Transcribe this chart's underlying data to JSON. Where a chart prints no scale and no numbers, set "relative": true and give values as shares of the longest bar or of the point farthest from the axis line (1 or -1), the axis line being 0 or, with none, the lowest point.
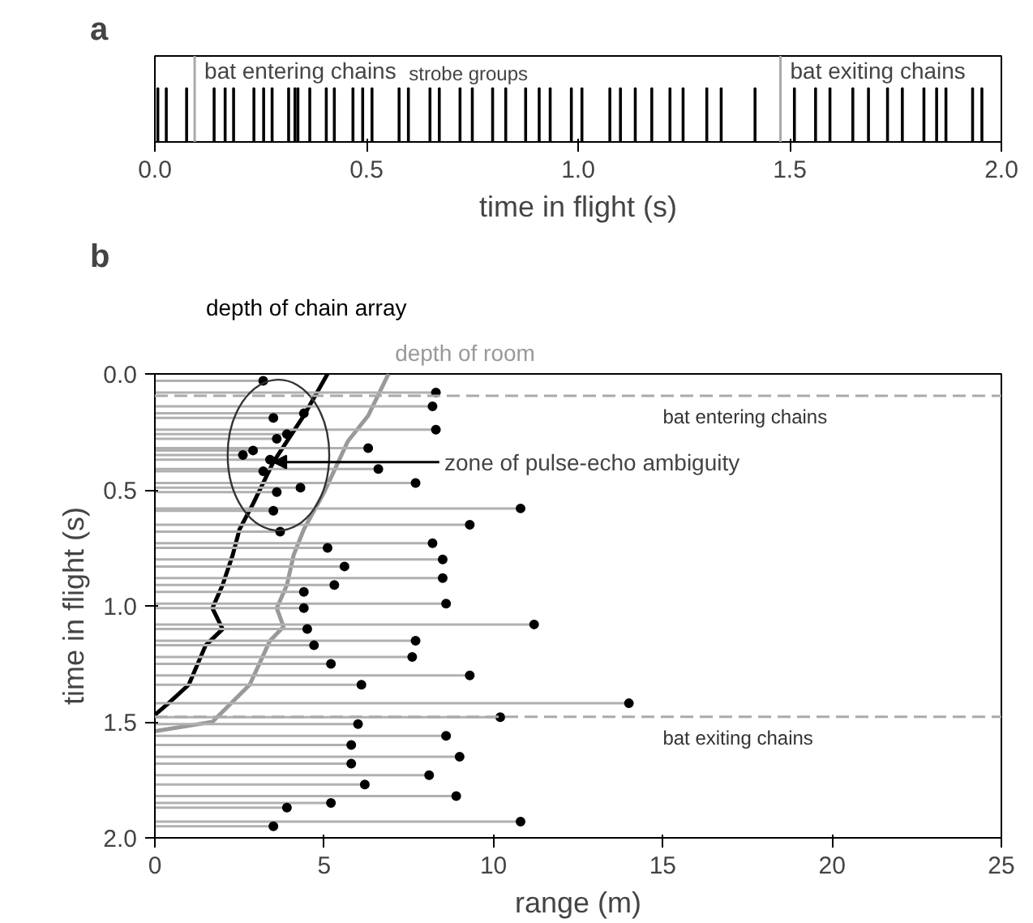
{
  "chart_data": [
    {
      "type": "bar",
      "title": "a",
      "xlabel": "time in flight (s)",
      "relative": true,
      "color": "#000000",
      "tick_labels": "x",
      "grid": false,
      "xlim": [
        0.0,
        2.0
      ],
      "xticks": [
        {
          "value": 0.0,
          "label": "0.0"
        },
        {
          "value": 0.5,
          "label": "0.5"
        },
        {
          "value": 1.0,
          "label": "1.0"
        },
        {
          "value": 1.5,
          "label": "1.5"
        },
        {
          "value": 2.0,
          "label": "2.0"
        }
      ],
      "x": [
        0.007,
        0.027,
        0.075,
        0.14,
        0.166,
        0.186,
        0.234,
        0.257,
        0.277,
        0.316,
        0.331,
        0.338,
        0.366,
        0.405,
        0.424,
        0.468,
        0.491,
        0.513,
        0.577,
        0.599,
        0.65,
        0.672,
        0.721,
        0.75,
        0.798,
        0.829,
        0.876,
        0.908,
        0.934,
        0.984,
        1.009,
        1.075,
        1.1,
        1.135,
        1.174,
        1.217,
        1.248,
        1.304,
        1.338,
        1.418,
        1.511,
        1.561,
        1.595,
        1.649,
        1.686,
        1.731,
        1.766,
        1.817,
        1.847,
        1.869,
        1.932,
        1.954
      ],
      "values": [
        1,
        1,
        1,
        1,
        1,
        1,
        1,
        1,
        1,
        1,
        1,
        1,
        1,
        1,
        1,
        1,
        1,
        1,
        1,
        1,
        1,
        1,
        1,
        1,
        1,
        1,
        1,
        1,
        1,
        1,
        1,
        1,
        1,
        1,
        1,
        1,
        1,
        1,
        1,
        1,
        1,
        1,
        1,
        1,
        1,
        1,
        1,
        1,
        1,
        1,
        1,
        1
      ],
      "ref_lines": [
        {
          "axis": "x",
          "value": 0.094,
          "label": "bat entering chains",
          "color": "#aaaaaa"
        },
        {
          "axis": "x",
          "value": 1.478,
          "label": "bat exiting chains",
          "color": "#aaaaaa"
        }
      ],
      "annotations": [
        "strobe groups"
      ]
    },
    {
      "type": "scatter",
      "title": "b",
      "xlabel": "range (m)",
      "ylabel": "time in flight (s)",
      "grid": false,
      "xlim": [
        0,
        25
      ],
      "xticks": [
        0,
        5,
        10,
        15,
        20,
        25
      ],
      "ylim": [
        2.0,
        0.0
      ],
      "yticks": [
        {
          "value": 0.0,
          "label": "0.0"
        },
        {
          "value": 0.5,
          "label": "0.5"
        },
        {
          "value": 1.0,
          "label": "1.0"
        },
        {
          "value": 1.5,
          "label": "1.5"
        },
        {
          "value": 2.0,
          "label": "2.0"
        }
      ],
      "series": [
        {
          "type": "scatter",
          "color": "#000000",
          "x": [
            3.2,
            8.3,
            8.2,
            4.4,
            3.5,
            8.3,
            3.9,
            3.6,
            6.3,
            2.9,
            2.6,
            3.4,
            6.6,
            3.2,
            7.7,
            4.3,
            3.6,
            10.8,
            3.5,
            9.3,
            3.7,
            8.2,
            5.1,
            8.5,
            5.6,
            8.5,
            5.3,
            4.4,
            8.6,
            4.4,
            11.2,
            4.5,
            7.7,
            4.7,
            7.6,
            5.2,
            9.3,
            6.1,
            14.0,
            10.2,
            6.0,
            8.6,
            5.8,
            9.0,
            5.8,
            8.1,
            6.2,
            8.9,
            5.2,
            3.9,
            10.8,
            3.5
          ],
          "values": [
            0.03,
            0.08,
            0.14,
            0.17,
            0.19,
            0.24,
            0.26,
            0.28,
            0.32,
            0.33,
            0.35,
            0.37,
            0.41,
            0.42,
            0.47,
            0.49,
            0.51,
            0.58,
            0.59,
            0.65,
            0.68,
            0.73,
            0.75,
            0.8,
            0.83,
            0.88,
            0.91,
            0.94,
            0.99,
            1.01,
            1.08,
            1.1,
            1.15,
            1.17,
            1.22,
            1.25,
            1.3,
            1.34,
            1.42,
            1.48,
            1.51,
            1.56,
            1.6,
            1.65,
            1.68,
            1.73,
            1.77,
            1.82,
            1.85,
            1.87,
            1.93,
            1.95
          ],
          "xerrors": [
            [
              0,
              3.2
            ],
            [
              0,
              8.3
            ],
            [
              0,
              8.2
            ],
            [
              0,
              4.4
            ],
            [
              0,
              3.5
            ],
            [
              0,
              8.3
            ],
            [
              0,
              3.9
            ],
            [
              0,
              3.6
            ],
            [
              0,
              6.3
            ],
            [
              0,
              2.9
            ],
            [
              0,
              2.6
            ],
            [
              0,
              3.4
            ],
            [
              0,
              6.6
            ],
            [
              0,
              3.2
            ],
            [
              0,
              7.7
            ],
            [
              0,
              4.3
            ],
            [
              0,
              3.6
            ],
            [
              0,
              10.8
            ],
            [
              0,
              3.5
            ],
            [
              0,
              9.3
            ],
            [
              0,
              3.7
            ],
            [
              0,
              8.2
            ],
            [
              0,
              5.1
            ],
            [
              0,
              8.5
            ],
            [
              0,
              5.6
            ],
            [
              0,
              8.5
            ],
            [
              0,
              5.3
            ],
            [
              0,
              4.4
            ],
            [
              0,
              8.6
            ],
            [
              0,
              4.4
            ],
            [
              0,
              11.2
            ],
            [
              0,
              4.5
            ],
            [
              0,
              7.7
            ],
            [
              0,
              4.7
            ],
            [
              0,
              7.6
            ],
            [
              0,
              5.2
            ],
            [
              0,
              9.3
            ],
            [
              0,
              6.1
            ],
            [
              0,
              14.0
            ],
            [
              0,
              10.2
            ],
            [
              0,
              6.0
            ],
            [
              0,
              8.6
            ],
            [
              0,
              5.8
            ],
            [
              0,
              9.0
            ],
            [
              0,
              5.8
            ],
            [
              0,
              8.1
            ],
            [
              0,
              6.2
            ],
            [
              0,
              8.9
            ],
            [
              0,
              5.2
            ],
            [
              0,
              3.9
            ],
            [
              0,
              10.8
            ],
            [
              0,
              3.5
            ]
          ]
        },
        {
          "type": "line",
          "name": "depth of chain array",
          "color": "#000000",
          "x": [
            5.1,
            4.4,
            3.5,
            2.9,
            2.5,
            2.3,
            2.0,
            1.7,
            2.0,
            1.5,
            1.0,
            0.4,
            0.0
          ],
          "values": [
            0.0,
            0.18,
            0.38,
            0.56,
            0.67,
            0.78,
            0.91,
            1.01,
            1.1,
            1.17,
            1.34,
            1.42,
            1.47
          ]
        },
        {
          "type": "line",
          "name": "depth of room",
          "color": "#999999",
          "x": [
            6.9,
            6.3,
            5.7,
            5.0,
            4.4,
            4.1,
            3.9,
            3.6,
            3.8,
            3.4,
            2.8,
            1.7,
            0.0
          ],
          "values": [
            0.0,
            0.18,
            0.29,
            0.51,
            0.67,
            0.78,
            0.91,
            1.01,
            1.09,
            1.15,
            1.34,
            1.5,
            1.54
          ]
        }
      ],
      "ref_lines": [
        {
          "axis": "y",
          "value": 0.094,
          "label": "bat entering chains",
          "color": "#aaaaaa",
          "line_style": "dashed"
        },
        {
          "axis": "y",
          "value": 1.478,
          "label": "bat exiting chains",
          "color": "#aaaaaa",
          "line_style": "dashed"
        }
      ],
      "annotations": [
        {
          "text": "zone of pulse-echo ambiguity",
          "x": 3.5,
          "y": 0.38
        }
      ]
    }
  ]
}
